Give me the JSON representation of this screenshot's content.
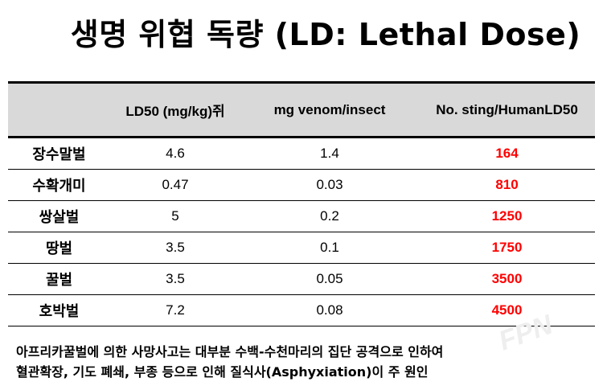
{
  "title": "생명 위협 독량 (LD: Lethal Dose)",
  "table": {
    "headers": [
      "",
      "LD50 (mg/kg)쥐",
      "mg venom/insect",
      "No. sting/HumanLD50"
    ],
    "rows": [
      {
        "name": "장수말벌",
        "ld50": "4.6",
        "venom": "1.4",
        "stings": "164"
      },
      {
        "name": "수확개미",
        "ld50": "0.47",
        "venom": "0.03",
        "stings": "810"
      },
      {
        "name": "쌍살벌",
        "ld50": "5",
        "venom": "0.2",
        "stings": "1250"
      },
      {
        "name": "땅벌",
        "ld50": "3.5",
        "venom": "0.1",
        "stings": "1750"
      },
      {
        "name": "꿀벌",
        "ld50": "3.5",
        "venom": "0.05",
        "stings": "3500"
      },
      {
        "name": "호박벌",
        "ld50": "7.2",
        "venom": "0.08",
        "stings": "4500"
      }
    ]
  },
  "note": {
    "line1": "아프리카꿀벌에 의한 사망사고는 대부분 수백-수천마리의 집단 공격으로 인하여",
    "line2": "혈관확장, 기도 폐쇄, 부종 등으로 인해 질식사(Asphyxiation)이 주 원인"
  },
  "watermark": "FPN",
  "colors": {
    "highlight": "#ff0000",
    "header_bg": "#d9d9d9"
  }
}
